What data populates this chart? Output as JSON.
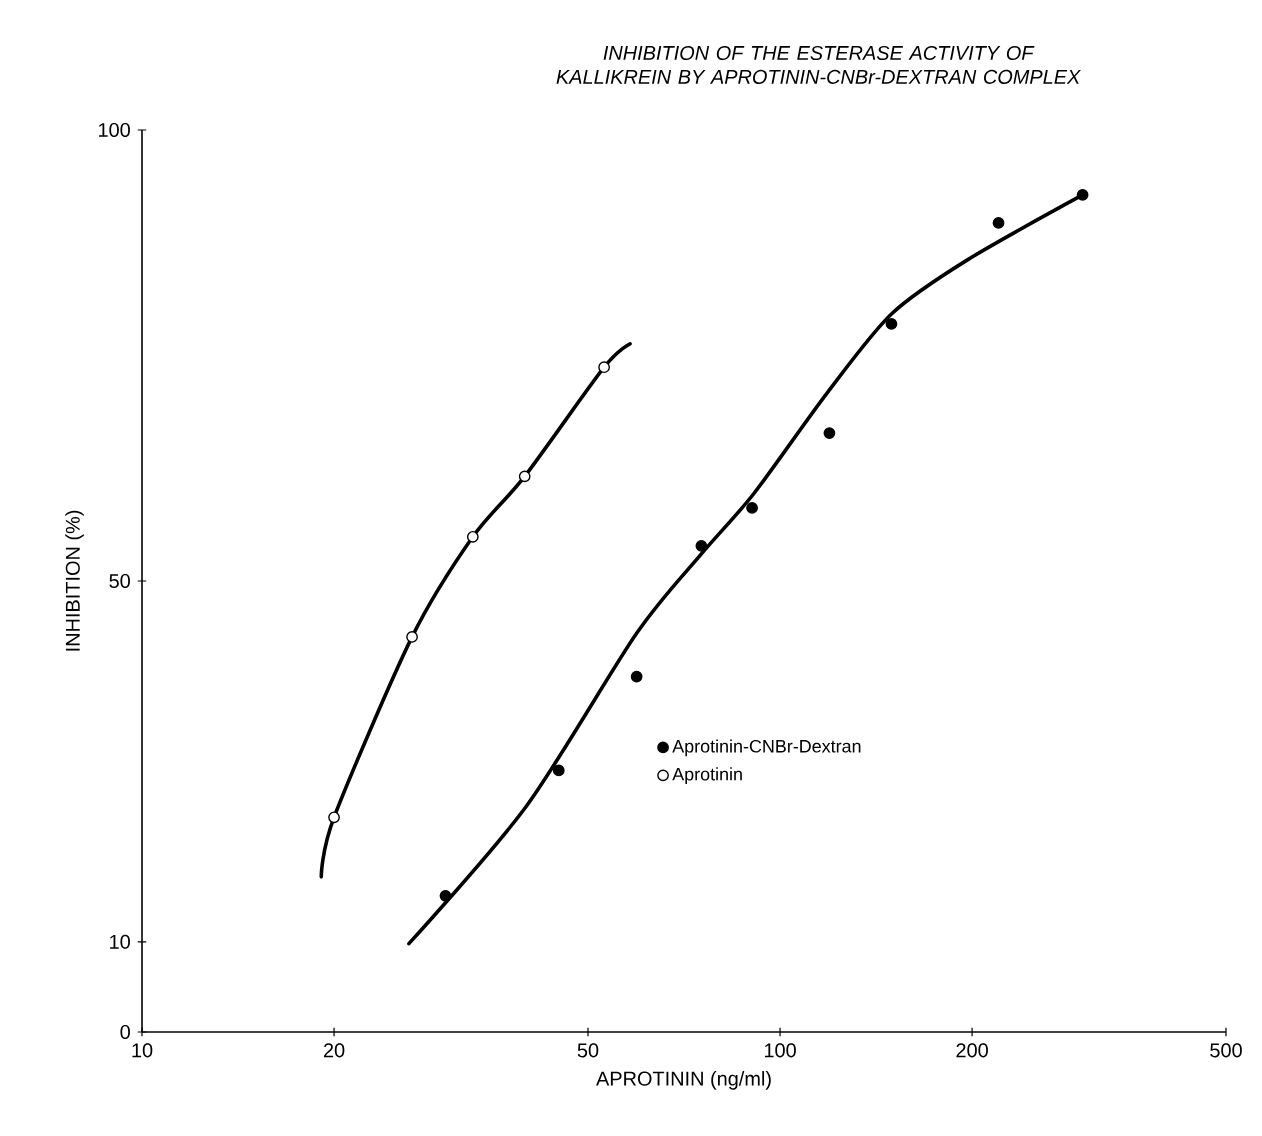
{
  "chart_data": {
    "type": "scatter",
    "title": "INHIBITION OF THE ESTERASE ACTIVITY OF KALLIKREIN BY APROTININ-CNBr-DEXTRAN COMPLEX",
    "xlabel": "APROTININ (ng/ml)",
    "ylabel": "INHIBITION (%)",
    "log": "x",
    "xlim": [
      10,
      500
    ],
    "xticks": [
      10,
      20,
      50,
      100,
      200,
      500
    ],
    "ylim": [
      0,
      100
    ],
    "yticks": [
      0,
      10,
      50,
      100
    ],
    "marker": "circle",
    "legend": "right",
    "series": [
      {
        "name": "Aprotinin-CNBr-Dextran",
        "color": "#000000",
        "x": [
          29.9,
          45.0,
          59.6,
          75.3,
          90.4,
          119.5,
          149.5,
          220,
          298
        ],
        "values": [
          15.1,
          29.0,
          39.4,
          53.9,
          58.1,
          66.4,
          78.5,
          89.7,
          92.8
        ]
      },
      {
        "name": "Aprotinin",
        "color": "#ffffff",
        "x": [
          20,
          26.5,
          33.0,
          39.8,
          53.0
        ],
        "values": [
          23.8,
          43.8,
          54.9,
          61.6,
          73.7
        ]
      },
      {
        "type": "line",
        "marker": "none",
        "color": "#000000",
        "x": [
          26.2,
          40,
          59.6,
          75.3,
          91,
          118.4,
          149.5,
          196.7,
          298
        ],
        "values": [
          9.8,
          25.0,
          44.2,
          53.0,
          59.7,
          70.8,
          79.6,
          85.6,
          92.8
        ]
      },
      {
        "type": "line",
        "marker": "none",
        "color": "#000000",
        "x": [
          19.1,
          20,
          26.5,
          33.0,
          39.8,
          53.0,
          58.2
        ],
        "values": [
          17.2,
          23.8,
          43.8,
          54.9,
          61.6,
          73.7,
          76.3
        ]
      }
    ]
  }
}
